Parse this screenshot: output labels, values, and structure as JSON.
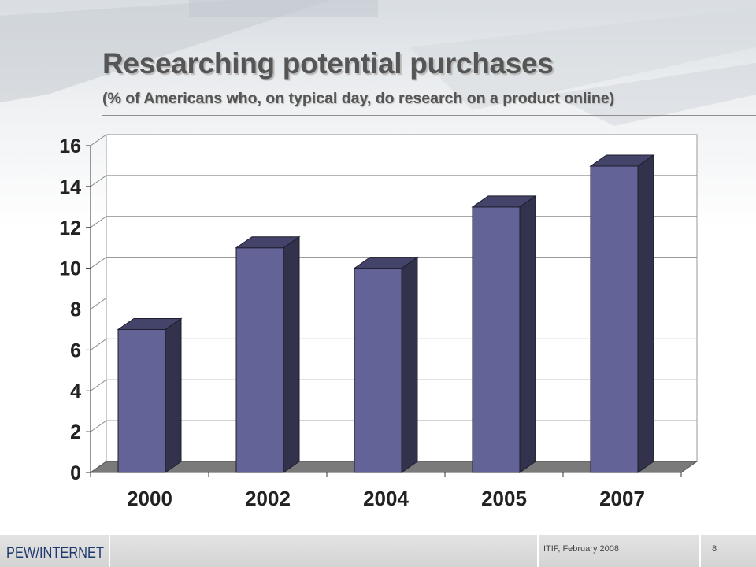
{
  "slide": {
    "title": "Researching potential purchases",
    "subtitle": "(% of Americans who, on typical day, do research on a product online)"
  },
  "footer": {
    "logo_text": "PEW/INTERNET",
    "event": "ITIF, February 2008",
    "page_number": "8"
  },
  "colors": {
    "bar_front": "#636397",
    "bar_side": "#32324c",
    "bar_top": "#44446a",
    "floor": "#7a7a7a",
    "title": "#555555"
  },
  "chart_data": {
    "type": "bar",
    "title": "",
    "xlabel": "",
    "ylabel": "",
    "categories": [
      "2000",
      "2002",
      "2004",
      "2005",
      "2007"
    ],
    "values": [
      7,
      11,
      10,
      13,
      15
    ],
    "ylim": [
      0,
      16
    ],
    "yticks": [
      "0",
      "2",
      "4",
      "6",
      "8",
      "10",
      "12",
      "14",
      "16"
    ],
    "grid": true,
    "style": "3d-column"
  }
}
